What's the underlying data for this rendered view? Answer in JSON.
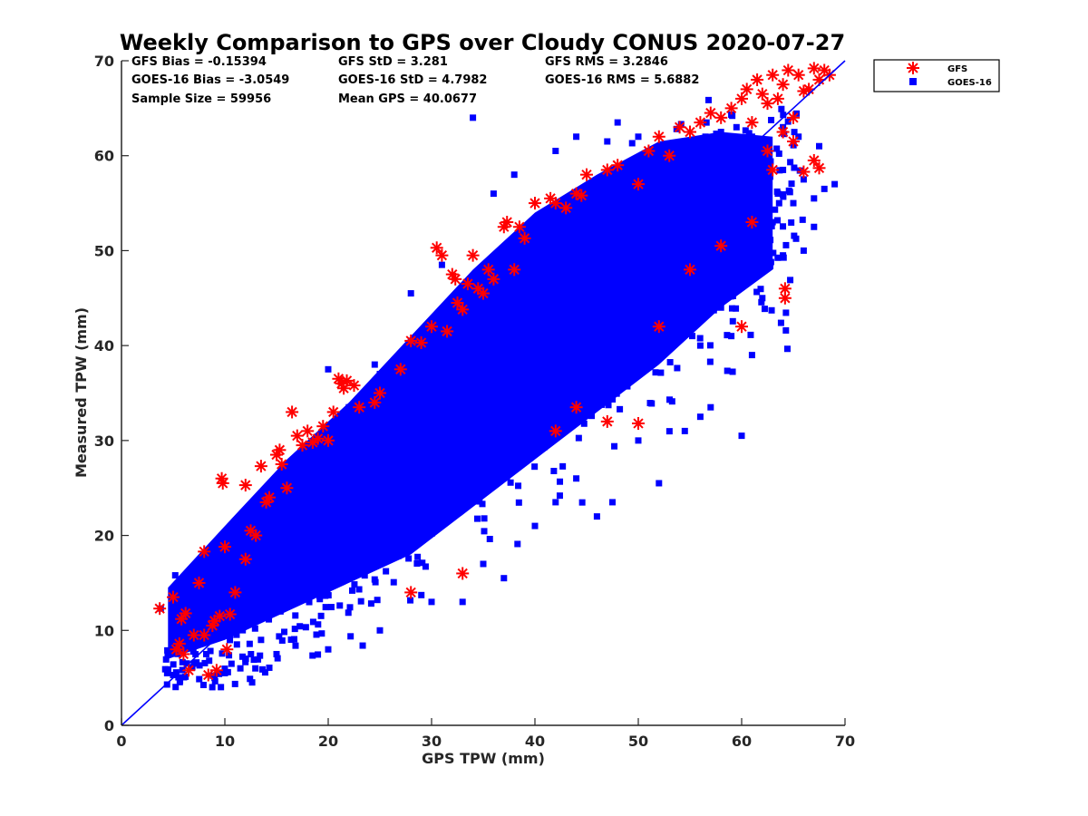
{
  "chart_data": {
    "type": "scatter",
    "title": "Weekly Comparison to GPS over Cloudy CONUS 2020-07-27",
    "xlabel": "GPS TPW (mm)",
    "ylabel": "Measured TPW (mm)",
    "xlim": [
      0,
      70
    ],
    "ylim": [
      0,
      70
    ],
    "xticks": [
      0,
      10,
      20,
      30,
      40,
      50,
      60,
      70
    ],
    "yticks": [
      0,
      10,
      20,
      30,
      40,
      50,
      60,
      70
    ],
    "grid": false,
    "legend_position": "outside-top-right",
    "reference_line": {
      "x": [
        0,
        70
      ],
      "y": [
        0,
        70
      ],
      "color": "#0000ff"
    },
    "stats": {
      "gfs_bias": "GFS Bias = -0.15394",
      "goes_bias": "GOES-16 Bias = -3.0549",
      "sample_size": "Sample Size = 59956",
      "gfs_std": "GFS StD = 3.281",
      "goes_std": "GOES-16 StD = 4.7982",
      "mean_gps": "Mean GPS = 40.0677",
      "gfs_rms": "GFS RMS = 3.2846",
      "goes_rms": "GOES-16 RMS = 5.6882"
    },
    "series": [
      {
        "name": "GFS",
        "marker": "asterisk",
        "color": "#ff0000",
        "points": [
          [
            3.7,
            12.3
          ],
          [
            5.0,
            13.5
          ],
          [
            5.3,
            8.0
          ],
          [
            5.6,
            8.6
          ],
          [
            5.8,
            11.2
          ],
          [
            6.2,
            11.8
          ],
          [
            6.5,
            5.8
          ],
          [
            7.0,
            9.5
          ],
          [
            7.5,
            15.0
          ],
          [
            8.0,
            18.3
          ],
          [
            8.4,
            5.3
          ],
          [
            8.8,
            10.5
          ],
          [
            9.2,
            5.8
          ],
          [
            9.5,
            11.5
          ],
          [
            9.7,
            26.0
          ],
          [
            9.8,
            25.5
          ],
          [
            10.0,
            18.8
          ],
          [
            10.2,
            8.0
          ],
          [
            11.0,
            14.0
          ],
          [
            12.0,
            25.3
          ],
          [
            12.5,
            20.5
          ],
          [
            13.0,
            20.0
          ],
          [
            13.5,
            27.3
          ],
          [
            14.0,
            23.5
          ],
          [
            14.3,
            24.0
          ],
          [
            15.0,
            28.5
          ],
          [
            15.3,
            29.0
          ],
          [
            15.5,
            27.5
          ],
          [
            16.0,
            25.0
          ],
          [
            16.5,
            33.0
          ],
          [
            17.0,
            30.5
          ],
          [
            17.5,
            29.5
          ],
          [
            18.0,
            31.0
          ],
          [
            18.5,
            29.8
          ],
          [
            19.0,
            30.2
          ],
          [
            19.5,
            31.5
          ],
          [
            20.0,
            30.0
          ],
          [
            20.5,
            33.0
          ],
          [
            21.0,
            36.5
          ],
          [
            21.3,
            36.0
          ],
          [
            21.5,
            35.5
          ],
          [
            21.8,
            36.3
          ],
          [
            22.5,
            35.8
          ],
          [
            23.0,
            33.5
          ],
          [
            24.5,
            34.0
          ],
          [
            25.0,
            35.0
          ],
          [
            27.0,
            37.5
          ],
          [
            28.0,
            40.5
          ],
          [
            29.0,
            40.3
          ],
          [
            30.0,
            42.0
          ],
          [
            30.5,
            50.3
          ],
          [
            31.0,
            49.5
          ],
          [
            31.5,
            41.5
          ],
          [
            32.0,
            47.5
          ],
          [
            32.3,
            47.0
          ],
          [
            32.5,
            44.5
          ],
          [
            33.0,
            43.8
          ],
          [
            33.5,
            46.5
          ],
          [
            34.0,
            49.5
          ],
          [
            34.5,
            46.0
          ],
          [
            35.0,
            45.5
          ],
          [
            35.5,
            48.0
          ],
          [
            36.0,
            47.0
          ],
          [
            37.0,
            52.5
          ],
          [
            37.3,
            53.0
          ],
          [
            38.0,
            48.0
          ],
          [
            38.5,
            52.5
          ],
          [
            39.0,
            51.3
          ],
          [
            40.0,
            55.0
          ],
          [
            41.5,
            55.5
          ],
          [
            42.0,
            55.0
          ],
          [
            43.0,
            54.5
          ],
          [
            44.0,
            56.0
          ],
          [
            44.5,
            55.8
          ],
          [
            45.0,
            58.0
          ],
          [
            47.0,
            58.5
          ],
          [
            48.0,
            59.0
          ],
          [
            50.0,
            57.0
          ],
          [
            51.0,
            60.5
          ],
          [
            52.0,
            62.0
          ],
          [
            53.0,
            60.0
          ],
          [
            54.0,
            63.0
          ],
          [
            55.0,
            62.5
          ],
          [
            56.0,
            63.5
          ],
          [
            57.0,
            64.5
          ],
          [
            58.0,
            64.0
          ],
          [
            59.0,
            65.0
          ],
          [
            60.0,
            66.0
          ],
          [
            60.5,
            67.0
          ],
          [
            61.0,
            63.5
          ],
          [
            61.5,
            68.0
          ],
          [
            62.0,
            66.5
          ],
          [
            62.5,
            65.5
          ],
          [
            63.0,
            68.5
          ],
          [
            63.5,
            66.0
          ],
          [
            64.0,
            67.5
          ],
          [
            64.5,
            69.0
          ],
          [
            65.0,
            64.0
          ],
          [
            65.5,
            68.5
          ],
          [
            66.0,
            66.8
          ],
          [
            66.5,
            67.0
          ],
          [
            67.0,
            69.2
          ],
          [
            67.5,
            68.0
          ],
          [
            68.0,
            69.0
          ],
          [
            68.5,
            68.5
          ],
          [
            64.2,
            45.0
          ],
          [
            64.2,
            46.0
          ],
          [
            60.0,
            42.0
          ],
          [
            62.5,
            60.5
          ],
          [
            63.0,
            58.5
          ],
          [
            66.0,
            58.3
          ],
          [
            67.0,
            59.5
          ],
          [
            67.5,
            58.7
          ],
          [
            64.0,
            62.5
          ],
          [
            65.0,
            61.5
          ],
          [
            50.0,
            31.8
          ],
          [
            44.0,
            33.5
          ],
          [
            42.0,
            31.0
          ],
          [
            33.0,
            16.0
          ],
          [
            28.0,
            14.0
          ],
          [
            47.0,
            32.0
          ],
          [
            52.0,
            42.0
          ],
          [
            55.0,
            48.0
          ],
          [
            58.0,
            50.5
          ],
          [
            61.0,
            53.0
          ],
          [
            9.0,
            11.0
          ],
          [
            10.5,
            11.7
          ],
          [
            6.0,
            7.5
          ],
          [
            8.0,
            9.5
          ],
          [
            12.0,
            17.5
          ]
        ]
      },
      {
        "name": "GOES-16",
        "marker": "square",
        "color": "#0000ff",
        "points": [
          [
            3.8,
            12.3
          ],
          [
            5.0,
            5.3
          ],
          [
            5.2,
            15.8
          ],
          [
            5.5,
            14.5
          ],
          [
            6.0,
            12.5
          ],
          [
            6.5,
            13.5
          ],
          [
            7.0,
            6.5
          ],
          [
            7.2,
            16.0
          ],
          [
            7.8,
            14.8
          ],
          [
            8.2,
            7.5
          ],
          [
            8.5,
            16.5
          ],
          [
            9.0,
            5.0
          ],
          [
            9.5,
            12.0
          ],
          [
            10.0,
            17.0
          ],
          [
            10.5,
            9.5
          ],
          [
            11.0,
            19.0
          ],
          [
            11.5,
            6.0
          ],
          [
            12.0,
            16.5
          ],
          [
            12.5,
            11.0
          ],
          [
            13.0,
            21.0
          ],
          [
            13.5,
            9.0
          ],
          [
            14.0,
            18.0
          ],
          [
            14.5,
            22.0
          ],
          [
            15.0,
            12.0
          ],
          [
            15.5,
            19.5
          ],
          [
            16.0,
            23.5
          ],
          [
            16.5,
            13.0
          ],
          [
            17.0,
            20.5
          ],
          [
            17.5,
            27.0
          ],
          [
            18.0,
            14.5
          ],
          [
            18.5,
            25.0
          ],
          [
            19.0,
            28.5
          ],
          [
            19.5,
            16.5
          ],
          [
            20.0,
            26.0
          ],
          [
            20.5,
            30.5
          ],
          [
            21.0,
            17.0
          ],
          [
            21.5,
            27.5
          ],
          [
            22.0,
            33.5
          ],
          [
            22.5,
            18.5
          ],
          [
            23.0,
            29.5
          ],
          [
            23.5,
            35.0
          ],
          [
            24.0,
            20.0
          ],
          [
            24.5,
            31.0
          ],
          [
            25.0,
            37.0
          ],
          [
            25.5,
            21.5
          ],
          [
            26.0,
            32.5
          ],
          [
            26.5,
            38.5
          ],
          [
            27.0,
            23.0
          ],
          [
            27.5,
            34.0
          ],
          [
            28.0,
            40.0
          ],
          [
            28.5,
            24.5
          ],
          [
            29.0,
            36.0
          ],
          [
            29.5,
            41.5
          ],
          [
            30.0,
            25.5
          ],
          [
            30.5,
            37.5
          ],
          [
            31.0,
            43.0
          ],
          [
            31.5,
            26.5
          ],
          [
            32.0,
            39.0
          ],
          [
            32.5,
            44.5
          ],
          [
            33.0,
            27.5
          ],
          [
            33.5,
            40.0
          ],
          [
            34.0,
            46.0
          ],
          [
            34.5,
            29.0
          ],
          [
            35.0,
            41.5
          ],
          [
            35.5,
            47.5
          ],
          [
            36.0,
            30.5
          ],
          [
            36.5,
            43.0
          ],
          [
            37.0,
            49.0
          ],
          [
            37.5,
            31.5
          ],
          [
            38.0,
            44.5
          ],
          [
            38.5,
            50.5
          ],
          [
            39.0,
            33.0
          ],
          [
            39.5,
            46.0
          ],
          [
            40.0,
            52.0
          ],
          [
            40.5,
            34.0
          ],
          [
            41.0,
            47.5
          ],
          [
            41.5,
            53.5
          ],
          [
            42.0,
            35.5
          ],
          [
            42.5,
            48.5
          ],
          [
            43.0,
            55.0
          ],
          [
            43.5,
            36.5
          ],
          [
            44.0,
            50.0
          ],
          [
            44.5,
            56.0
          ],
          [
            45.0,
            38.0
          ],
          [
            45.5,
            51.5
          ],
          [
            46.0,
            57.0
          ],
          [
            46.5,
            39.5
          ],
          [
            47.0,
            52.5
          ],
          [
            47.5,
            58.0
          ],
          [
            48.0,
            41.0
          ],
          [
            48.5,
            53.5
          ],
          [
            49.0,
            59.0
          ],
          [
            49.5,
            42.0
          ],
          [
            50.0,
            54.5
          ],
          [
            50.5,
            59.5
          ],
          [
            51.0,
            43.5
          ],
          [
            51.5,
            55.0
          ],
          [
            52.0,
            60.0
          ],
          [
            52.5,
            45.0
          ],
          [
            53.0,
            55.5
          ],
          [
            53.5,
            61.0
          ],
          [
            54.0,
            46.0
          ],
          [
            54.5,
            56.0
          ],
          [
            55.0,
            61.5
          ],
          [
            55.5,
            47.5
          ],
          [
            56.0,
            57.0
          ],
          [
            56.5,
            62.0
          ],
          [
            57.0,
            48.5
          ],
          [
            57.5,
            57.5
          ],
          [
            58.0,
            62.5
          ],
          [
            58.5,
            50.0
          ],
          [
            59.0,
            58.0
          ],
          [
            59.5,
            63.0
          ],
          [
            60.0,
            51.0
          ],
          [
            60.5,
            58.5
          ],
          [
            61.0,
            62.0
          ],
          [
            61.5,
            52.0
          ],
          [
            62.0,
            57.0
          ],
          [
            62.5,
            60.0
          ],
          [
            63.0,
            53.0
          ],
          [
            63.5,
            56.0
          ],
          [
            64.0,
            58.5
          ],
          [
            65.0,
            55.0
          ],
          [
            66.0,
            57.5
          ],
          [
            67.0,
            55.5
          ],
          [
            68.0,
            56.5
          ],
          [
            64.0,
            63.0
          ],
          [
            65.5,
            62.0
          ],
          [
            67.5,
            61.0
          ],
          [
            69.0,
            57.0
          ],
          [
            34.0,
            64.0
          ],
          [
            48.0,
            63.5
          ],
          [
            60.0,
            30.5
          ],
          [
            57.0,
            33.5
          ],
          [
            52.0,
            25.5
          ],
          [
            56.0,
            32.5
          ],
          [
            42.0,
            23.5
          ],
          [
            37.0,
            15.5
          ],
          [
            33.0,
            13.0
          ],
          [
            46.0,
            22.0
          ],
          [
            47.5,
            23.5
          ],
          [
            50.0,
            30.0
          ],
          [
            54.5,
            31.0
          ],
          [
            44.0,
            26.0
          ],
          [
            40.0,
            21.0
          ],
          [
            35.0,
            17.0
          ],
          [
            25.0,
            10.0
          ],
          [
            30.0,
            13.0
          ],
          [
            20.0,
            8.0
          ],
          [
            15.0,
            7.5
          ],
          [
            12.0,
            7.0
          ],
          [
            10.0,
            5.5
          ],
          [
            62.0,
            45.0
          ],
          [
            64.0,
            49.5
          ],
          [
            66.0,
            50.0
          ],
          [
            67.0,
            52.5
          ],
          [
            61.0,
            39.0
          ],
          [
            59.0,
            41.0
          ],
          [
            58.0,
            44.0
          ],
          [
            56.0,
            40.0
          ],
          [
            24.5,
            38.0
          ],
          [
            20.0,
            37.5
          ],
          [
            28.0,
            45.5
          ],
          [
            31.0,
            48.5
          ],
          [
            36.0,
            56.0
          ],
          [
            38.0,
            58.0
          ],
          [
            42.0,
            60.5
          ],
          [
            44.0,
            62.0
          ],
          [
            47.0,
            61.5
          ],
          [
            50.0,
            62.0
          ]
        ]
      }
    ]
  }
}
